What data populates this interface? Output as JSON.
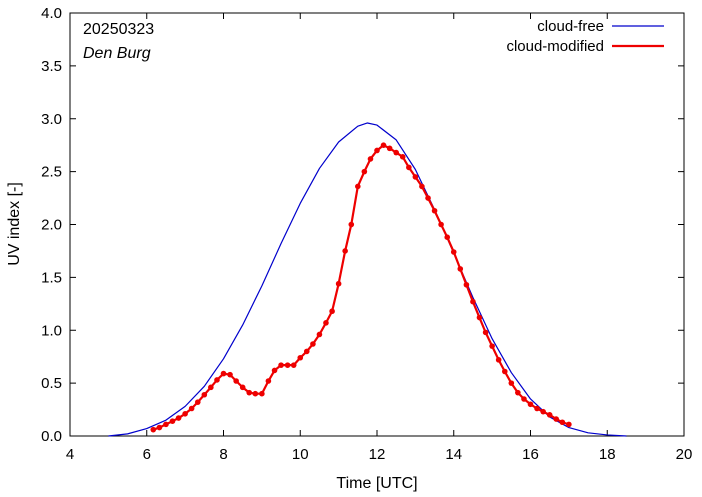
{
  "chart_data": {
    "type": "line",
    "title": "",
    "xlabel": "Time  [UTC]",
    "ylabel": "UV index  [-]",
    "xlim": [
      4,
      20
    ],
    "ylim": [
      0,
      4
    ],
    "xticks": [
      4,
      6,
      8,
      10,
      12,
      14,
      16,
      18,
      20
    ],
    "xtick_labels": [
      "4",
      "6",
      "8",
      "10",
      "12",
      "14",
      "16",
      "18",
      "20"
    ],
    "yticks": [
      0,
      0.5,
      1,
      1.5,
      2,
      2.5,
      3,
      3.5,
      4
    ],
    "ytick_labels": [
      "0.0",
      "0.5",
      "1.0",
      "1.5",
      "2.0",
      "2.5",
      "3.0",
      "3.5",
      "4.0"
    ],
    "grid": false,
    "legend_position": "top-right",
    "annotations": {
      "date": "20250323",
      "location": "Den Burg"
    },
    "series": [
      {
        "name": "cloud-free",
        "color": "#0000cc",
        "markers": false,
        "x": [
          5.0,
          5.5,
          6.0,
          6.5,
          7.0,
          7.5,
          8.0,
          8.5,
          9.0,
          9.5,
          10.0,
          10.5,
          11.0,
          11.5,
          11.75,
          12.0,
          12.5,
          13.0,
          13.5,
          14.0,
          14.5,
          15.0,
          15.5,
          16.0,
          16.5,
          17.0,
          17.5,
          18.0,
          18.5
        ],
        "y": [
          0.0,
          0.02,
          0.07,
          0.15,
          0.28,
          0.47,
          0.73,
          1.05,
          1.42,
          1.82,
          2.2,
          2.53,
          2.78,
          2.93,
          2.96,
          2.94,
          2.8,
          2.52,
          2.14,
          1.73,
          1.31,
          0.92,
          0.6,
          0.35,
          0.18,
          0.08,
          0.03,
          0.01,
          0.0
        ]
      },
      {
        "name": "cloud-modified",
        "color": "#ee0000",
        "markers": true,
        "x": [
          6.17,
          6.33,
          6.5,
          6.67,
          6.83,
          7.0,
          7.17,
          7.33,
          7.5,
          7.67,
          7.83,
          8.0,
          8.17,
          8.33,
          8.5,
          8.67,
          8.83,
          9.0,
          9.17,
          9.33,
          9.5,
          9.67,
          9.83,
          10.0,
          10.17,
          10.33,
          10.5,
          10.67,
          10.83,
          11.0,
          11.17,
          11.33,
          11.5,
          11.67,
          11.83,
          12.0,
          12.17,
          12.33,
          12.5,
          12.67,
          12.83,
          13.0,
          13.17,
          13.33,
          13.5,
          13.67,
          13.83,
          14.0,
          14.17,
          14.33,
          14.5,
          14.67,
          14.83,
          15.0,
          15.17,
          15.33,
          15.5,
          15.67,
          15.83,
          16.0,
          16.17,
          16.33,
          16.5,
          16.67,
          16.83,
          17.0
        ],
        "y": [
          0.06,
          0.08,
          0.11,
          0.14,
          0.17,
          0.21,
          0.26,
          0.32,
          0.39,
          0.46,
          0.53,
          0.59,
          0.58,
          0.52,
          0.46,
          0.41,
          0.4,
          0.4,
          0.52,
          0.62,
          0.67,
          0.67,
          0.67,
          0.74,
          0.8,
          0.87,
          0.96,
          1.07,
          1.18,
          1.44,
          1.75,
          2.0,
          2.36,
          2.5,
          2.62,
          2.7,
          2.75,
          2.72,
          2.68,
          2.64,
          2.54,
          2.45,
          2.36,
          2.25,
          2.13,
          2.0,
          1.88,
          1.74,
          1.58,
          1.43,
          1.27,
          1.12,
          0.98,
          0.85,
          0.72,
          0.61,
          0.5,
          0.41,
          0.35,
          0.3,
          0.26,
          0.23,
          0.2,
          0.16,
          0.13,
          0.11
        ]
      }
    ]
  }
}
